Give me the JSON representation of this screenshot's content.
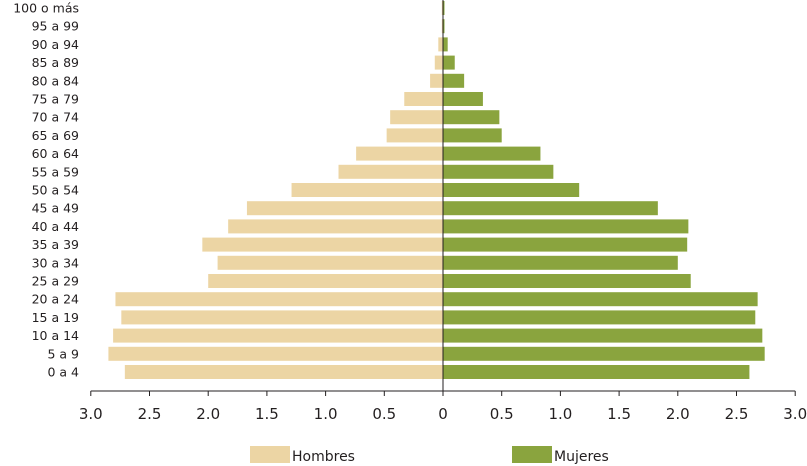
{
  "chart_data": {
    "type": "bar",
    "orientation": "horizontal-population-pyramid",
    "categories": [
      "0 a 4",
      "5 a 9",
      "10 a 14",
      "15 a 19",
      "20 a 24",
      "25 a 29",
      "30 a 34",
      "35 a 39",
      "40 a 44",
      "45 a 49",
      "50 a 54",
      "55 a 59",
      "60 a 64",
      "65 a 69",
      "70 a 74",
      "75 a 79",
      "80 a 84",
      "85 a 89",
      "90 a 94",
      "95 a 99",
      "100 o más"
    ],
    "series": [
      {
        "name": "Hombres",
        "color": "#ecd5a4",
        "values": [
          2.71,
          2.85,
          2.81,
          2.74,
          2.79,
          2.0,
          1.92,
          2.05,
          1.83,
          1.67,
          1.29,
          0.89,
          0.74,
          0.48,
          0.45,
          0.33,
          0.11,
          0.07,
          0.04,
          0.01,
          0.01
        ]
      },
      {
        "name": "Mujeres",
        "color": "#8aa43e",
        "values": [
          2.61,
          2.74,
          2.72,
          2.66,
          2.68,
          2.11,
          2.0,
          2.08,
          2.09,
          1.83,
          1.16,
          0.94,
          0.83,
          0.5,
          0.48,
          0.34,
          0.18,
          0.1,
          0.04,
          0.01,
          0.01
        ]
      }
    ],
    "xticks": [
      "3.0",
      "2.5",
      "2.0",
      "1.5",
      "1.0",
      "0.5",
      "0",
      "0.5",
      "1.0",
      "1.5",
      "2.0",
      "2.5",
      "3.0"
    ],
    "xlim": [
      -3.0,
      3.0
    ],
    "title": "",
    "xlabel": "",
    "ylabel": "",
    "grid": false,
    "legend_position": "bottom"
  }
}
